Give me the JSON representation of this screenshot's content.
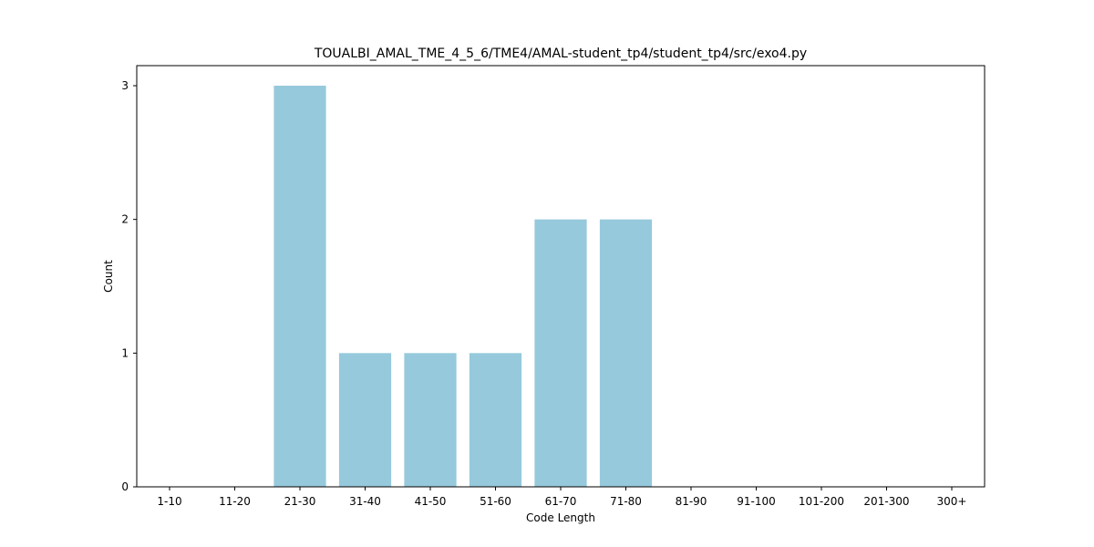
{
  "chart_data": {
    "type": "bar",
    "title": "TOUALBI_AMAL_TME_4_5_6/TME4/AMAL-student_tp4/student_tp4/src/exo4.py",
    "xlabel": "Code Length",
    "ylabel": "Count",
    "categories": [
      "1-10",
      "11-20",
      "21-30",
      "31-40",
      "41-50",
      "51-60",
      "61-70",
      "71-80",
      "81-90",
      "91-100",
      "101-200",
      "201-300",
      "300+"
    ],
    "values": [
      0,
      0,
      3,
      1,
      1,
      1,
      2,
      2,
      0,
      0,
      0,
      0,
      0
    ],
    "ylim": [
      0,
      3.15
    ],
    "yticks": [
      "0",
      "1",
      "2",
      "3"
    ],
    "grid": false,
    "bar_color": "#96c9dc"
  }
}
